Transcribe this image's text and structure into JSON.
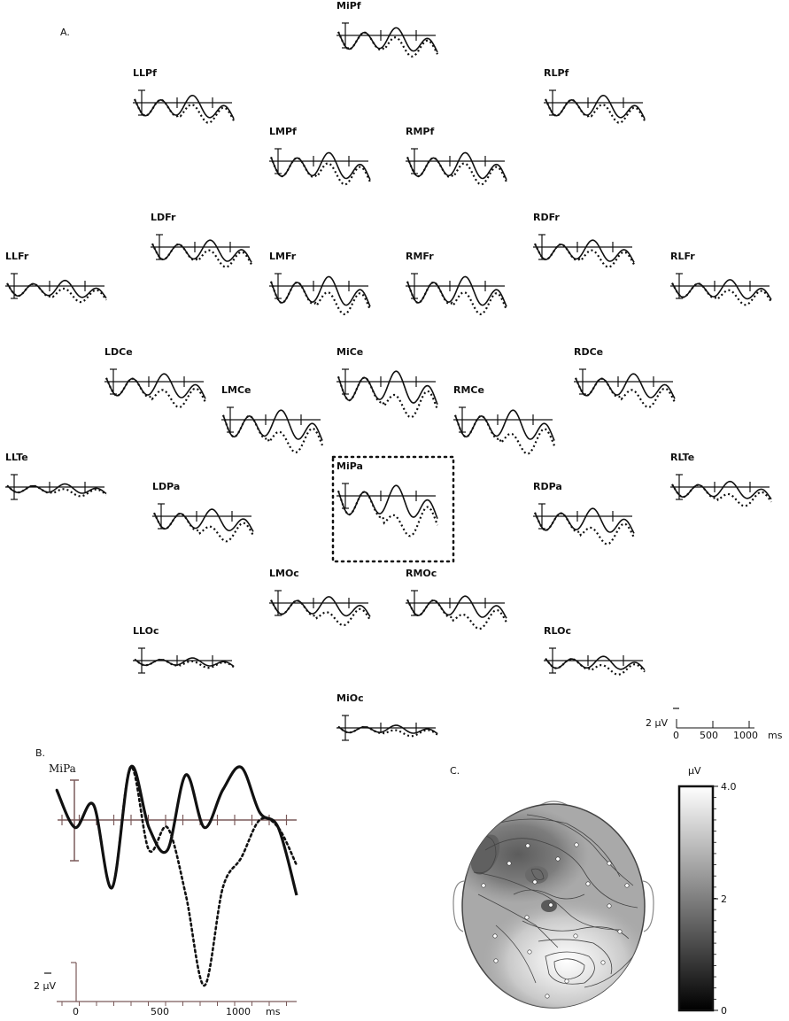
{
  "panels": {
    "a": "A.",
    "b": "B.",
    "c": "C."
  },
  "electrodes": [
    {
      "name": "MiPf",
      "amp": 1.6,
      "dip": 0.55,
      "sep": 0.3
    },
    {
      "name": "LLPf",
      "amp": 1.2,
      "dip": 0.7,
      "sep": 0.3
    },
    {
      "name": "RLPf",
      "amp": 1.2,
      "dip": 0.7,
      "sep": 0.3
    },
    {
      "name": "LMPf",
      "amp": 1.3,
      "dip": 0.75,
      "sep": 0.3
    },
    {
      "name": "RMPf",
      "amp": 1.3,
      "dip": 0.75,
      "sep": 0.3
    },
    {
      "name": "LDFr",
      "amp": 1.0,
      "dip": 0.8,
      "sep": 0.35
    },
    {
      "name": "RDFr",
      "amp": 1.0,
      "dip": 0.8,
      "sep": 0.35
    },
    {
      "name": "LLFr",
      "amp": 0.8,
      "dip": 0.8,
      "sep": 0.35
    },
    {
      "name": "RLFr",
      "amp": 0.9,
      "dip": 0.8,
      "sep": 0.4
    },
    {
      "name": "LMFr",
      "amp": 1.2,
      "dip": 0.9,
      "sep": 0.4
    },
    {
      "name": "RMFr",
      "amp": 1.2,
      "dip": 0.9,
      "sep": 0.4
    },
    {
      "name": "LDCe",
      "amp": 1.0,
      "dip": 0.9,
      "sep": 0.5
    },
    {
      "name": "RDCe",
      "amp": 1.0,
      "dip": 0.9,
      "sep": 0.5
    },
    {
      "name": "MiCe",
      "amp": 1.2,
      "dip": 1.0,
      "sep": 0.55
    },
    {
      "name": "LMCe",
      "amp": 1.1,
      "dip": 1.0,
      "sep": 0.55
    },
    {
      "name": "RMCe",
      "amp": 1.1,
      "dip": 1.0,
      "sep": 0.6
    },
    {
      "name": "LLTe",
      "amp": 0.5,
      "dip": 0.7,
      "sep": 0.4
    },
    {
      "name": "RLTe",
      "amp": 0.8,
      "dip": 0.8,
      "sep": 0.55
    },
    {
      "name": "LDPa",
      "amp": 0.9,
      "dip": 0.9,
      "sep": 0.6
    },
    {
      "name": "RDPa",
      "amp": 1.0,
      "dip": 0.9,
      "sep": 0.6
    },
    {
      "name": "MiPa",
      "amp": 1.2,
      "dip": 1.0,
      "sep": 0.7
    },
    {
      "name": "LMOc",
      "amp": 0.9,
      "dip": 0.8,
      "sep": 0.6
    },
    {
      "name": "RMOc",
      "amp": 1.0,
      "dip": 0.8,
      "sep": 0.65
    },
    {
      "name": "LLOc",
      "amp": 0.5,
      "dip": 0.6,
      "sep": 0.3
    },
    {
      "name": "RLOc",
      "amp": 0.7,
      "dip": 0.7,
      "sep": 0.5
    },
    {
      "name": "MiOc",
      "amp": 0.5,
      "dip": 0.6,
      "sep": 0.45
    }
  ],
  "scale_a": {
    "amp_label": "2 µV",
    "ticks": [
      "0",
      "500",
      "1000"
    ],
    "unit": "ms"
  },
  "panel_b": {
    "electrode": "MiPa",
    "amp_label": "2 µV",
    "ticks": [
      "0",
      "500",
      "1000"
    ],
    "unit": "ms"
  },
  "colorbar": {
    "unit": "µV",
    "max_label": "4.0",
    "mid_label": "2",
    "min_label": "0",
    "range": [
      0,
      4.0
    ]
  },
  "colors": {
    "line": "#111111",
    "axis": "#7a5a5a",
    "head_fill": "#b0b0b0"
  },
  "chart_data": [
    {
      "type": "line",
      "title": "MiPa",
      "xlabel": "ms",
      "ylabel": "µV",
      "x": [
        -100,
        0,
        100,
        200,
        300,
        400,
        500,
        600,
        700,
        800,
        900,
        1000,
        1100,
        1200
      ],
      "series": [
        {
          "values": [
            -2.0,
            0.5,
            -1.0,
            4.5,
            -3.5,
            0.5,
            2.0,
            -3.0,
            0.5,
            -2.0,
            -3.5,
            -0.5,
            0.5,
            5.0
          ]
        },
        {
          "values": [
            -2.0,
            0.5,
            -1.0,
            4.5,
            -3.5,
            2.0,
            0.5,
            5.0,
            11.0,
            4.5,
            2.5,
            0.0,
            0.5,
            3.0
          ]
        }
      ]
    }
  ]
}
